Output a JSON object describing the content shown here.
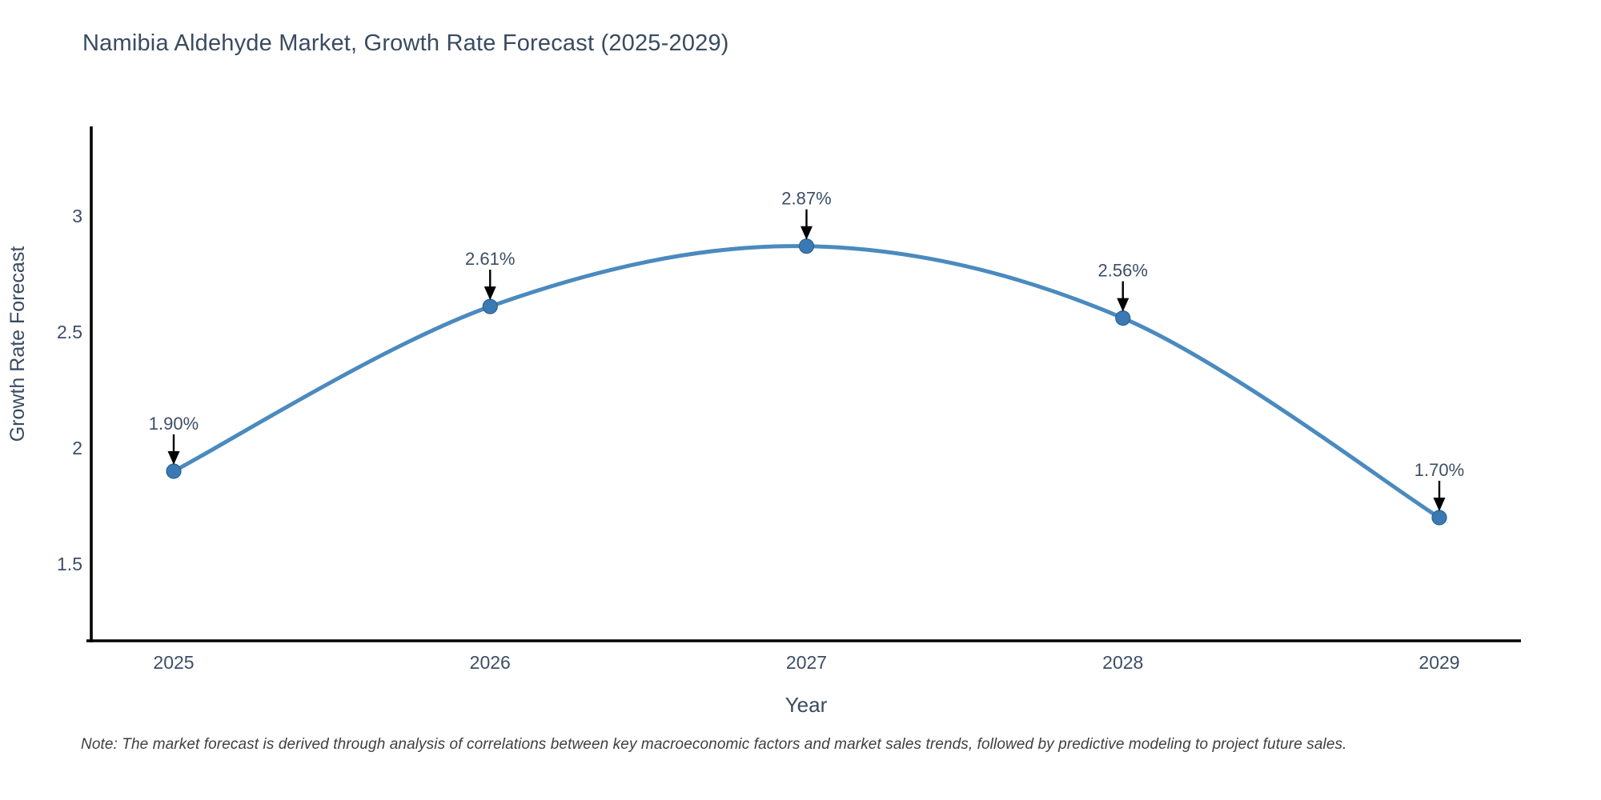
{
  "title": "Namibia Aldehyde Market, Growth Rate Forecast (2025-2029)",
  "note": "Note: The market forecast is derived through analysis of correlations between key macroeconomic factors and market sales trends, followed by predictive modeling to project future sales.",
  "chart_data": {
    "type": "line",
    "x": [
      2025,
      2026,
      2027,
      2028,
      2029
    ],
    "values": [
      1.9,
      2.61,
      2.87,
      2.56,
      1.7
    ],
    "point_labels": [
      "1.90%",
      "2.61%",
      "2.87%",
      "2.56%",
      "1.70%"
    ],
    "xlabel": "Year",
    "ylabel": "Growth Rate Forecast",
    "yticks": [
      1.5,
      2,
      2.5,
      3
    ],
    "xticks": [
      "2025",
      "2026",
      "2027",
      "2028",
      "2029"
    ],
    "ylim": [
      1.17,
      3.38
    ],
    "xlim": [
      2024.74,
      2029.26
    ],
    "grid": false,
    "legend": "none",
    "smooth": true
  },
  "colors": {
    "line": "#4184bb",
    "marker_fill": "#3a79b4",
    "marker_edge": "#2d628f",
    "axis_spine": "#000000",
    "tick_text": "#3d4e66",
    "annotation_text": "#3d4e66",
    "annotation_arrow": "#000000",
    "title_text": "#3a4b61",
    "note_text": "#3f3f3f"
  }
}
